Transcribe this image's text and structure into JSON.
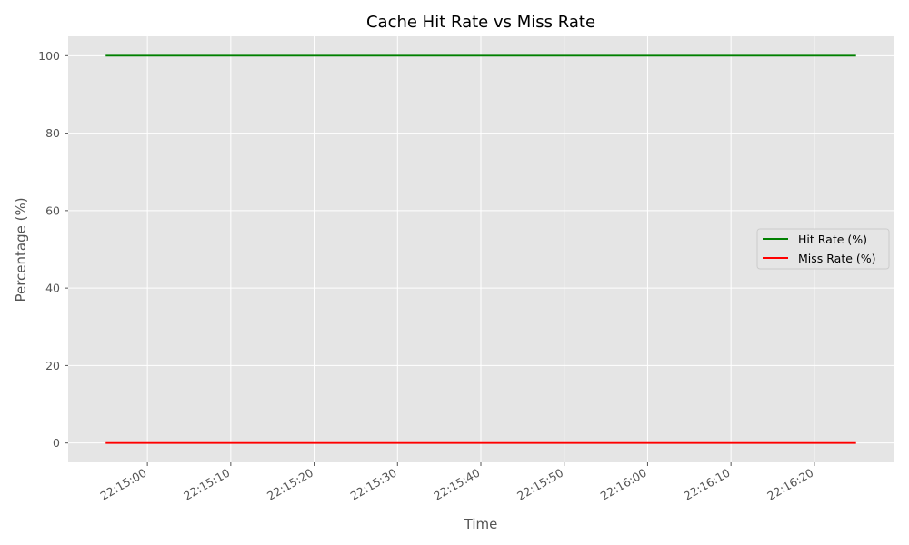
{
  "chart_data": {
    "type": "line",
    "title": "Cache Hit Rate vs Miss Rate",
    "xlabel": "Time",
    "ylabel": "Percentage (%)",
    "x_range": [
      "22:14:55",
      "22:16:25"
    ],
    "x_tick_labels": [
      "22:15:00",
      "22:15:10",
      "22:15:20",
      "22:15:30",
      "22:15:40",
      "22:15:50",
      "22:16:00",
      "22:16:10",
      "22:16:20"
    ],
    "ylim": [
      -5,
      105
    ],
    "y_ticks": [
      0,
      20,
      40,
      60,
      80,
      100
    ],
    "grid": true,
    "legend_position": "center-right",
    "series": [
      {
        "name": "Hit Rate (%)",
        "color": "#008000",
        "points": [
          [
            "22:14:55",
            100
          ],
          [
            "22:16:25",
            100
          ]
        ]
      },
      {
        "name": "Miss Rate (%)",
        "color": "#ff0000",
        "points": [
          [
            "22:14:55",
            0
          ],
          [
            "22:16:25",
            0
          ]
        ]
      }
    ]
  }
}
